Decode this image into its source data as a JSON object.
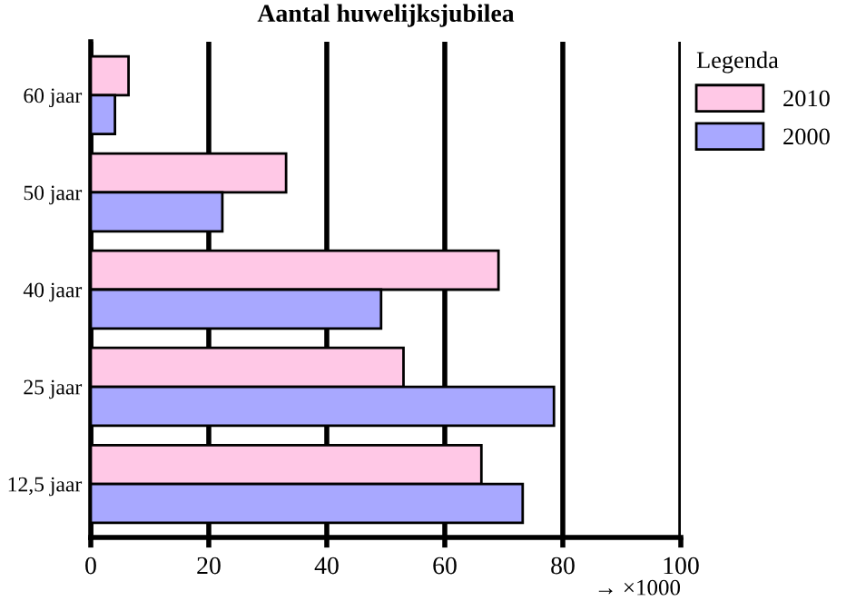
{
  "chart_data": {
    "type": "bar",
    "orientation": "horizontal",
    "title": "Aantal huwelijksjubilea",
    "xlabel": "→ ×1000",
    "legend_title": "Legenda",
    "categories": [
      "60 jaar",
      "50 jaar",
      "40 jaar",
      "25 jaar",
      "12,5 jaar"
    ],
    "series": [
      {
        "name": "2010",
        "color": "#ffc8e6",
        "values": [
          6.4,
          33.1,
          69.1,
          53.0,
          66.2
        ]
      },
      {
        "name": "2000",
        "color": "#a8a8ff",
        "values": [
          4.1,
          22.3,
          49.2,
          78.5,
          73.2
        ]
      }
    ],
    "xlim": [
      0,
      100
    ],
    "xticks": [
      0,
      20,
      40,
      60,
      80,
      100
    ],
    "grid": "x",
    "legend": "top right"
  }
}
